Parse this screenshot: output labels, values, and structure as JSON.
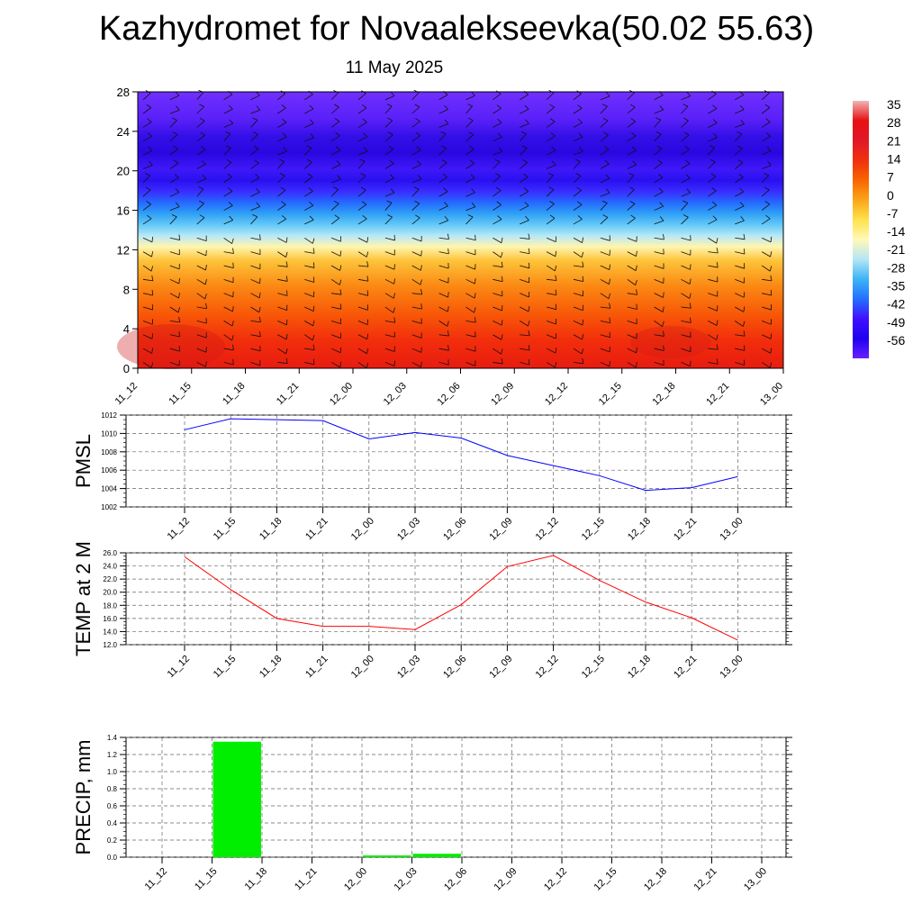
{
  "header": {
    "title": "Kazhydromet for Novaalekseevka(50.02 55.63)",
    "date": "11 May 2025"
  },
  "time_labels": [
    "11_12",
    "11_15",
    "11_18",
    "11_21",
    "12_00",
    "12_03",
    "12_06",
    "12_09",
    "12_12",
    "12_15",
    "12_18",
    "12_21",
    "13_00"
  ],
  "chart_data": [
    {
      "type": "heatmap",
      "title": "Kazhydromet for Novaalekseevka(50.02 55.63)",
      "subtitle": "11 May 2025",
      "x": [
        "11_12",
        "11_15",
        "11_18",
        "11_21",
        "12_00",
        "12_03",
        "12_06",
        "12_09",
        "12_12",
        "12_15",
        "12_18",
        "12_21",
        "13_00"
      ],
      "ylim": [
        0,
        28
      ],
      "y_ticks": [
        "0",
        "4",
        "8",
        "12",
        "16",
        "20",
        "24",
        "28"
      ],
      "colorbar": {
        "labels": [
          "35",
          "28",
          "21",
          "14",
          "7",
          "0",
          "-7",
          "-14",
          "-21",
          "-28",
          "-35",
          "-42",
          "-49",
          "-56"
        ],
        "colors": [
          "#f0b4b4",
          "#e81010",
          "#e01828",
          "#f03010",
          "#f86400",
          "#fba518",
          "#ffe14a",
          "#fff9b8",
          "#b4e6f5",
          "#3cb4f5",
          "#2370ff",
          "#4010ff",
          "#2000f0",
          "#6a20ff"
        ]
      },
      "wind_barbs": true
    },
    {
      "type": "line",
      "ylabel": "PMSL",
      "x": [
        "11_12",
        "11_15",
        "11_18",
        "11_21",
        "12_00",
        "12_03",
        "12_06",
        "12_09",
        "12_12",
        "12_15",
        "12_18",
        "12_21",
        "13_00"
      ],
      "values": [
        1010.4,
        1011.6,
        1011.5,
        1011.4,
        1009.4,
        1010.1,
        1009.5,
        1007.6,
        1006.5,
        1005.4,
        1003.8,
        1004.1,
        1005.3
      ],
      "ylim": [
        1002,
        1012
      ],
      "y_ticks": [
        "1002",
        "1004",
        "1006",
        "1008",
        "1010",
        "1012"
      ],
      "color": "#0000ff",
      "grid": true
    },
    {
      "type": "line",
      "ylabel": "TEMP at 2 M",
      "x": [
        "11_12",
        "11_15",
        "11_18",
        "11_21",
        "12_00",
        "12_03",
        "12_06",
        "12_09",
        "12_12",
        "12_15",
        "12_18",
        "12_21",
        "13_00"
      ],
      "values": [
        25.4,
        20.4,
        16.0,
        14.8,
        14.8,
        14.3,
        18.1,
        23.9,
        25.6,
        21.8,
        18.5,
        16.1,
        12.7
      ],
      "ylim": [
        12,
        26
      ],
      "y_ticks": [
        "12.0",
        "14.0",
        "16.0",
        "18.0",
        "20.0",
        "22.0",
        "24.0",
        "26.0"
      ],
      "color": "#ff0000",
      "grid": true
    },
    {
      "type": "bar",
      "ylabel": "PRECIP, mm",
      "categories": [
        "11_12",
        "11_15",
        "11_18",
        "11_21",
        "12_00",
        "12_03",
        "12_06",
        "12_09",
        "12_12",
        "12_15",
        "12_18",
        "12_21",
        "13_00"
      ],
      "values": [
        0,
        1.35,
        0,
        0,
        0.02,
        0.04,
        0,
        0,
        0,
        0,
        0,
        0,
        0
      ],
      "ylim": [
        0,
        1.4
      ],
      "y_ticks": [
        "0.0",
        "0.2",
        "0.4",
        "0.6",
        "0.8",
        "1.0",
        "1.2",
        "1.4"
      ],
      "color": "#00ee00",
      "grid": true
    }
  ]
}
